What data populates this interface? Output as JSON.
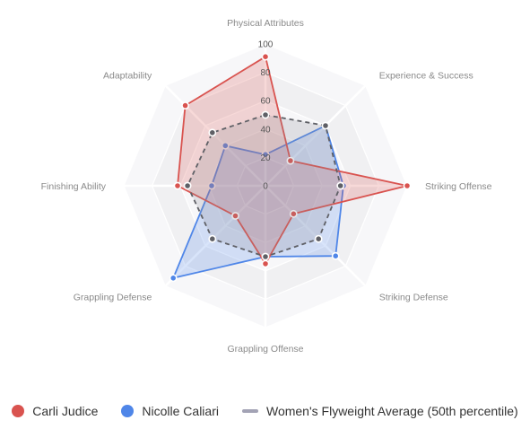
{
  "chart_data": {
    "type": "radar",
    "axes": [
      "Physical Attributes",
      "Experience & Success",
      "Striking Offense",
      "Striking Defense",
      "Grappling Offense",
      "Grappling Defense",
      "Finishing Ability",
      "Adaptability"
    ],
    "ticks": [
      0,
      20,
      40,
      60,
      80,
      100
    ],
    "range": [
      0,
      100
    ],
    "series": [
      {
        "name": "Carli Judice",
        "values": [
          91,
          25,
          100,
          28,
          55,
          30,
          62,
          80
        ],
        "color": "#d9534f",
        "style": "solid"
      },
      {
        "name": "Nicolle Caliari",
        "values": [
          22,
          60,
          55,
          70,
          50,
          92,
          38,
          40
        ],
        "color": "#4f86e8",
        "style": "solid"
      },
      {
        "name": "Women's Flyweight Average (50th percentile)",
        "values": [
          50,
          60,
          53,
          53,
          50,
          53,
          55,
          53
        ],
        "color": "#5f6066",
        "style": "dashed"
      }
    ],
    "legend_position": "bottom"
  }
}
